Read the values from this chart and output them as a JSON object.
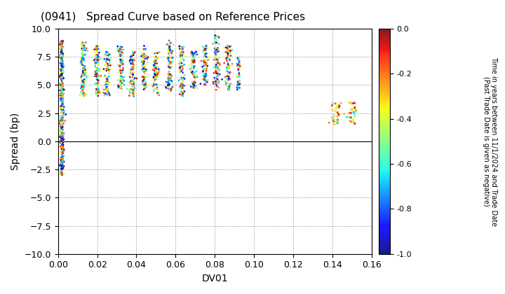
{
  "title": "(0941)   Spread Curve based on Reference Prices",
  "xlabel": "DV01",
  "ylabel": "Spread (bp)",
  "xlim": [
    0.0,
    0.16
  ],
  "ylim": [
    -10.0,
    10.0
  ],
  "yticks": [
    -10.0,
    -7.5,
    -5.0,
    -2.5,
    0.0,
    2.5,
    5.0,
    7.5,
    10.0
  ],
  "xticks": [
    0.0,
    0.02,
    0.04,
    0.06,
    0.08,
    0.1,
    0.12,
    0.14,
    0.16
  ],
  "colorbar_label": "Time in years between 11/1/2024 and Trade Date\n(Past Trade Date is given as negative)",
  "colorbar_ticks": [
    0.0,
    -0.2,
    -0.4,
    -0.6,
    -0.8,
    -1.0
  ],
  "cmap": "jet",
  "vmin": -1.0,
  "vmax": 0.0,
  "marker_size": 4,
  "background_color": "#ffffff",
  "grid_color": "#888888",
  "grid_style": "dotted",
  "bond_groups": [
    {
      "dv01": 0.002,
      "dv01_noise": 0.0005,
      "n": 400,
      "y_min": -3.0,
      "y_max": 9.0,
      "c_min": -1.0,
      "c_max": 0.0
    },
    {
      "dv01": 0.013,
      "dv01_noise": 0.0008,
      "n": 120,
      "y_min": 4.0,
      "y_max": 9.0,
      "c_min": -1.0,
      "c_max": 0.0
    },
    {
      "dv01": 0.02,
      "dv01_noise": 0.0008,
      "n": 100,
      "y_min": 4.0,
      "y_max": 8.5,
      "c_min": -1.0,
      "c_max": 0.0
    },
    {
      "dv01": 0.025,
      "dv01_noise": 0.0008,
      "n": 80,
      "y_min": 4.0,
      "y_max": 8.0,
      "c_min": -1.0,
      "c_max": 0.0
    },
    {
      "dv01": 0.032,
      "dv01_noise": 0.0008,
      "n": 90,
      "y_min": 4.5,
      "y_max": 8.5,
      "c_min": -1.0,
      "c_max": 0.0
    },
    {
      "dv01": 0.038,
      "dv01_noise": 0.0008,
      "n": 90,
      "y_min": 4.0,
      "y_max": 8.0,
      "c_min": -1.0,
      "c_max": 0.0
    },
    {
      "dv01": 0.044,
      "dv01_noise": 0.0008,
      "n": 80,
      "y_min": 4.5,
      "y_max": 8.5,
      "c_min": -1.0,
      "c_max": 0.0
    },
    {
      "dv01": 0.05,
      "dv01_noise": 0.0008,
      "n": 80,
      "y_min": 4.0,
      "y_max": 8.0,
      "c_min": -1.0,
      "c_max": 0.0
    },
    {
      "dv01": 0.057,
      "dv01_noise": 0.0008,
      "n": 90,
      "y_min": 4.5,
      "y_max": 9.0,
      "c_min": -1.0,
      "c_max": 0.0
    },
    {
      "dv01": 0.063,
      "dv01_noise": 0.0008,
      "n": 80,
      "y_min": 4.0,
      "y_max": 8.5,
      "c_min": -1.0,
      "c_max": 0.0
    },
    {
      "dv01": 0.069,
      "dv01_noise": 0.0008,
      "n": 80,
      "y_min": 4.5,
      "y_max": 8.0,
      "c_min": -1.0,
      "c_max": 0.0
    },
    {
      "dv01": 0.075,
      "dv01_noise": 0.0008,
      "n": 80,
      "y_min": 5.0,
      "y_max": 8.5,
      "c_min": -1.0,
      "c_max": 0.0
    },
    {
      "dv01": 0.081,
      "dv01_noise": 0.0008,
      "n": 90,
      "y_min": 4.5,
      "y_max": 9.5,
      "c_min": -1.0,
      "c_max": 0.0
    },
    {
      "dv01": 0.087,
      "dv01_noise": 0.0008,
      "n": 80,
      "y_min": 4.5,
      "y_max": 8.5,
      "c_min": -1.0,
      "c_max": 0.0
    },
    {
      "dv01": 0.092,
      "dv01_noise": 0.0005,
      "n": 50,
      "y_min": 4.5,
      "y_max": 7.5,
      "c_min": -1.0,
      "c_max": 0.0
    },
    {
      "dv01": 0.142,
      "dv01_noise": 0.0015,
      "n": 40,
      "y_min": 1.5,
      "y_max": 3.5,
      "c_min": -0.6,
      "c_max": 0.0
    },
    {
      "dv01": 0.15,
      "dv01_noise": 0.0015,
      "n": 40,
      "y_min": 1.5,
      "y_max": 3.5,
      "c_min": -0.7,
      "c_max": 0.0
    }
  ]
}
